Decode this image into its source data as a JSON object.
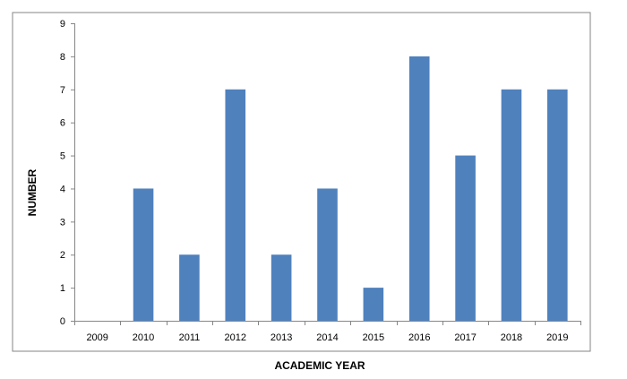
{
  "chart_data": {
    "type": "bar",
    "title": "",
    "xlabel": "ACADEMIC YEAR",
    "ylabel": "NUMBER",
    "categories": [
      "2009",
      "2010",
      "2011",
      "2012",
      "2013",
      "2014",
      "2015",
      "2016",
      "2017",
      "2018",
      "2019"
    ],
    "values": [
      0,
      4,
      2,
      7,
      2,
      4,
      1,
      8,
      5,
      7,
      7
    ],
    "ylim": [
      0,
      9
    ],
    "yticks": [
      "0",
      "1",
      "2",
      "3",
      "4",
      "5",
      "6",
      "7",
      "8",
      "9"
    ],
    "grid": false,
    "legend": "none",
    "bar_color": "#4F81BD",
    "frame_color": "#868686"
  }
}
